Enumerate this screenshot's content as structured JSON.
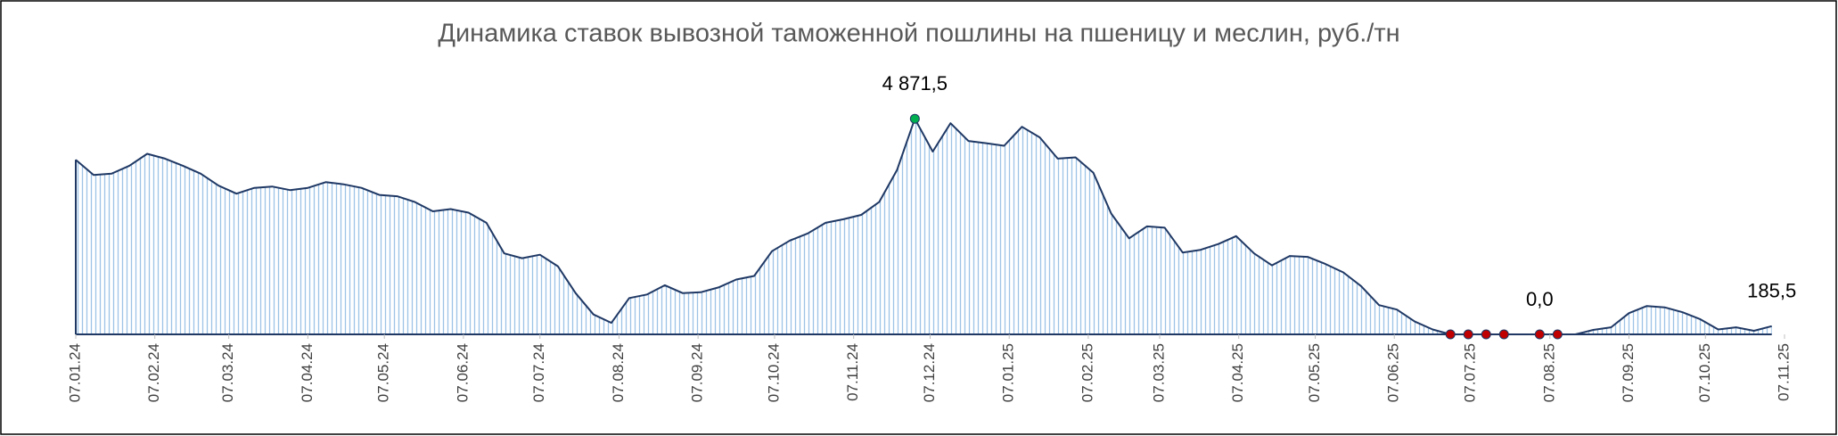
{
  "chart_data": {
    "type": "area",
    "title": "Динамика ставок вывозной таможенной пошлины на пшеницу и меслин, руб./тн",
    "x": [
      "2024-01-07",
      "2024-01-14",
      "2024-01-21",
      "2024-01-28",
      "2024-02-04",
      "2024-02-11",
      "2024-02-18",
      "2024-02-25",
      "2024-03-03",
      "2024-03-10",
      "2024-03-17",
      "2024-03-24",
      "2024-03-31",
      "2024-04-07",
      "2024-04-14",
      "2024-04-21",
      "2024-04-28",
      "2024-05-05",
      "2024-05-12",
      "2024-05-19",
      "2024-05-26",
      "2024-06-02",
      "2024-06-09",
      "2024-06-16",
      "2024-06-23",
      "2024-06-30",
      "2024-07-07",
      "2024-07-14",
      "2024-07-21",
      "2024-07-28",
      "2024-08-04",
      "2024-08-11",
      "2024-08-18",
      "2024-08-25",
      "2024-09-01",
      "2024-09-08",
      "2024-09-15",
      "2024-09-22",
      "2024-09-29",
      "2024-10-06",
      "2024-10-13",
      "2024-10-20",
      "2024-10-27",
      "2024-11-03",
      "2024-11-10",
      "2024-11-17",
      "2024-11-24",
      "2024-12-01",
      "2024-12-08",
      "2024-12-15",
      "2024-12-22",
      "2024-12-29",
      "2025-01-05",
      "2025-01-12",
      "2025-01-19",
      "2025-01-26",
      "2025-02-02",
      "2025-02-09",
      "2025-02-16",
      "2025-02-23",
      "2025-03-02",
      "2025-03-09",
      "2025-03-16",
      "2025-03-23",
      "2025-03-30",
      "2025-04-06",
      "2025-04-13",
      "2025-04-20",
      "2025-04-27",
      "2025-05-04",
      "2025-05-11",
      "2025-05-18",
      "2025-05-25",
      "2025-06-01",
      "2025-06-08",
      "2025-06-15",
      "2025-06-22",
      "2025-06-29",
      "2025-07-06",
      "2025-07-13",
      "2025-07-20",
      "2025-07-27",
      "2025-08-03",
      "2025-08-10",
      "2025-08-17",
      "2025-08-24",
      "2025-08-31",
      "2025-09-07",
      "2025-09-14",
      "2025-09-21",
      "2025-09-28",
      "2025-10-05",
      "2025-10-12",
      "2025-10-19",
      "2025-10-26",
      "2025-11-02"
    ],
    "values": [
      3945,
      3600,
      3630,
      3810,
      4080,
      3970,
      3810,
      3630,
      3360,
      3180,
      3310,
      3340,
      3260,
      3310,
      3440,
      3390,
      3310,
      3150,
      3120,
      2990,
      2780,
      2830,
      2750,
      2520,
      1830,
      1720,
      1800,
      1540,
      930,
      450,
      260,
      820,
      900,
      1110,
      930,
      950,
      1060,
      1240,
      1320,
      1880,
      2120,
      2280,
      2520,
      2600,
      2700,
      2990,
      3710,
      4871.5,
      4130,
      4770,
      4370,
      4320,
      4260,
      4690,
      4450,
      3970,
      4000,
      3650,
      2730,
      2170,
      2440,
      2410,
      1850,
      1910,
      2040,
      2220,
      1830,
      1560,
      1770,
      1750,
      1590,
      1400,
      1090,
      660,
      560,
      290,
      110,
      0,
      0,
      0,
      0,
      0,
      0,
      0,
      0,
      100,
      160,
      480,
      640,
      610,
      500,
      340,
      110,
      160,
      80,
      185.5
    ],
    "color": "#1f3864",
    "fill_color": "#9dc3e6",
    "xlim": [
      "2024-01-07",
      "2025-11-07"
    ],
    "ylim": [
      0,
      5500
    ],
    "xticks": [
      {
        "value": "2024-01-07",
        "label": "07.01.24"
      },
      {
        "value": "2024-02-07",
        "label": "07.02.24"
      },
      {
        "value": "2024-03-07",
        "label": "07.03.24"
      },
      {
        "value": "2024-04-07",
        "label": "07.04.24"
      },
      {
        "value": "2024-05-07",
        "label": "07.05.24"
      },
      {
        "value": "2024-06-07",
        "label": "07.06.24"
      },
      {
        "value": "2024-07-07",
        "label": "07.07.24"
      },
      {
        "value": "2024-08-07",
        "label": "07.08.24"
      },
      {
        "value": "2024-09-07",
        "label": "07.09.24"
      },
      {
        "value": "2024-10-07",
        "label": "07.10.24"
      },
      {
        "value": "2024-11-07",
        "label": "07.11.24"
      },
      {
        "value": "2024-12-07",
        "label": "07.12.24"
      },
      {
        "value": "2025-01-07",
        "label": "07.01.25"
      },
      {
        "value": "2025-02-07",
        "label": "07.02.25"
      },
      {
        "value": "2025-03-07",
        "label": "07.03.25"
      },
      {
        "value": "2025-04-07",
        "label": "07.04.25"
      },
      {
        "value": "2025-05-07",
        "label": "07.05.25"
      },
      {
        "value": "2025-06-07",
        "label": "07.06.25"
      },
      {
        "value": "2025-07-07",
        "label": "07.07.25"
      },
      {
        "value": "2025-08-07",
        "label": "07.08.25"
      },
      {
        "value": "2025-09-07",
        "label": "07.09.25"
      },
      {
        "value": "2025-10-07",
        "label": "07.10.25"
      },
      {
        "value": "2025-11-07",
        "label": "07.11.25"
      }
    ],
    "markers": [
      {
        "x": "2024-12-01",
        "value": 4871.5,
        "color": "#00b050"
      },
      {
        "x": "2025-06-29",
        "value": 0,
        "color": "#c00000"
      },
      {
        "x": "2025-07-06",
        "value": 0,
        "color": "#c00000"
      },
      {
        "x": "2025-07-13",
        "value": 0,
        "color": "#c00000"
      },
      {
        "x": "2025-07-20",
        "value": 0,
        "color": "#c00000"
      },
      {
        "x": "2025-08-03",
        "value": 0,
        "color": "#c00000"
      },
      {
        "x": "2025-08-10",
        "value": 0,
        "color": "#c00000"
      }
    ],
    "annotations": [
      {
        "x": "2024-12-01",
        "value": 4871.5,
        "label": "4 871,5"
      },
      {
        "x": "2025-08-03",
        "value": 0,
        "label": "0,0"
      },
      {
        "x": "2025-11-02",
        "value": 185.5,
        "label": "185,5"
      }
    ]
  }
}
